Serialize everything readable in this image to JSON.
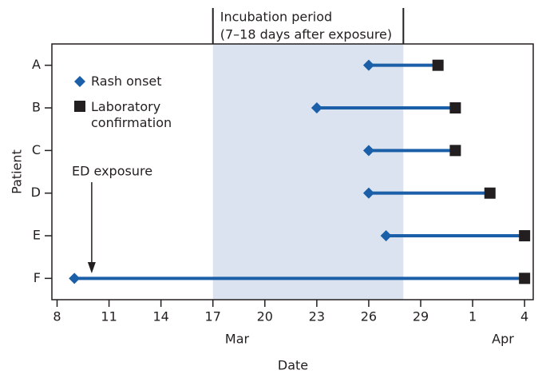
{
  "chart_data": {
    "type": "range",
    "x_label": "Date",
    "y_label": "Patient",
    "categories": [
      "A",
      "B",
      "C",
      "D",
      "E",
      "F"
    ],
    "series": [
      {
        "name": "Rash onset",
        "color": "#1a5fa8",
        "marker": "diamond",
        "values": [
          26,
          23,
          26,
          26,
          27,
          9
        ]
      },
      {
        "name": "Laboratory confirmation",
        "color": "#231f20",
        "marker": "square",
        "values": [
          30,
          31,
          31,
          33,
          35,
          35
        ]
      }
    ],
    "line_color": "#1a5fa8",
    "xlim": [
      7.7,
      35.5
    ],
    "xticks": [
      8,
      11,
      14,
      17,
      20,
      23,
      26,
      29,
      {
        "value": 32,
        "label": "1"
      },
      {
        "value": 35,
        "label": "4"
      }
    ],
    "months": [
      "Mar",
      "Apr"
    ],
    "shaded_period": {
      "title": "Incubation period",
      "subtitle": "(7–18 days after exposure)",
      "start": 17,
      "end": 28,
      "color": "#dbe3f0"
    },
    "exposure": {
      "label": "ED exposure",
      "x": 10
    }
  }
}
